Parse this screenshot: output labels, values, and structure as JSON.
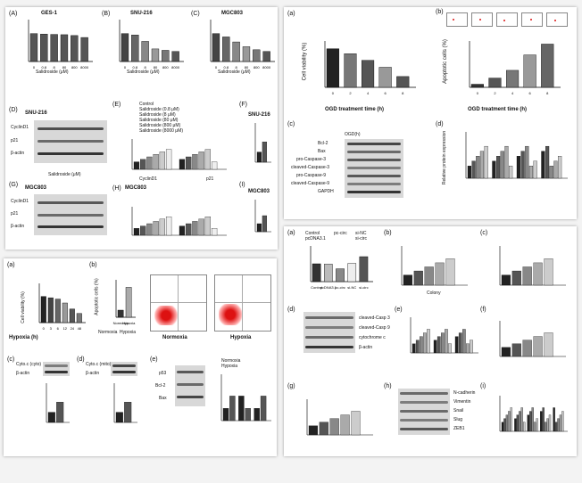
{
  "panelA": {
    "letters": [
      "(A)",
      "(B)",
      "(C)",
      "(D)",
      "(E)",
      "(F)",
      "(G)",
      "(H)",
      "(I)"
    ],
    "chartA_title": "GES-1",
    "chartB_title": "SNU-216",
    "chartC_title": "MGC803",
    "ylabel": "Cell viability (%)",
    "xlabel": "Salidroside (μM)",
    "doses": [
      "0",
      "0.8",
      "8",
      "80",
      "800",
      "8000"
    ],
    "blot1_title": "SNU-216",
    "blot2_title": "MGC803",
    "blot_rows": [
      "CyclinD1",
      "p21",
      "β-actin"
    ],
    "legend": [
      "Control",
      "Salidroside (0.8 μM)",
      "Salidroside (8 μM)",
      "Salidroside (80 μM)",
      "Salidroside (800 μM)",
      "Salidroside (8000 μM)"
    ],
    "rel_signal_label": "Relative signal intensity/control",
    "x_groups": [
      "CyclinD1",
      "p21"
    ],
    "mrna_label": "Relative CyclinD1 mRNA level",
    "mrna_x": [
      "Control",
      "Salidroside"
    ],
    "sig": "***"
  },
  "panelB": {
    "letters": [
      "(a)",
      "(b)",
      "(c)",
      "(d)"
    ],
    "ylabel_a": "Cell viability (%)",
    "ylabel_b": "Apoptotic cells (%)",
    "xlabel": "OGD treatment time (h)",
    "hours": [
      "0",
      "2",
      "4",
      "6",
      "8"
    ],
    "blot_header": "OGD(h)",
    "blot_rows": [
      "Bcl-2",
      "Bax",
      "pro-Caspase-3",
      "cleaved-Caspase-3",
      "pro-Caspase-9",
      "cleaved-Caspase-9",
      "GAPDH"
    ],
    "ylabel_d": "Relative protein expression",
    "d_groups": [
      "Bcl-2",
      "Bax",
      "pro-caspase-3",
      "pro-caspase-9"
    ]
  },
  "panelC": {
    "letters": [
      "(a)",
      "(b)",
      "(c)",
      "(d)",
      "(e)"
    ],
    "ylabel_a": "Cell viability (%)",
    "hypoxia_label": "Hypoxia (h)",
    "hours": [
      "0",
      "3",
      "6",
      "12",
      "24",
      "48"
    ],
    "ylabel_b": "Apoptotic cells (%)",
    "conditions": [
      "Normoxia",
      "Hypoxia"
    ],
    "flow_quads": [
      "Q1",
      "Q2",
      "Q3",
      "Q4"
    ],
    "cyto_cyto": "Cyto.c (cyto)",
    "cyto_mito": "Cyto.c (mito)",
    "beta_actin": "β-actin",
    "ylabel_cyto": "Cyto.c (cyto) (fold change)",
    "ylabel_mito": "Cyto.c (mito) (fold change)",
    "blot_rows_e": [
      "p53",
      "Bcl-2",
      "Bax"
    ],
    "ylabel_e": "Protein level (fold change)",
    "legend_e": [
      "Normoxia",
      "Hypoxia"
    ],
    "x_e": [
      "p53",
      "Bcl-2",
      "Bax"
    ]
  },
  "panelD": {
    "letters": [
      "(a)",
      "(b)",
      "(c)",
      "(d)",
      "(e)",
      "(f)",
      "(g)",
      "(h)",
      "(i)"
    ],
    "legend": [
      "Control",
      "pcDNA3.1",
      "pc-circ",
      "si-NC",
      "si-circ"
    ],
    "ylabel_a": "Cell viability (%)",
    "ylabel_b": "Survival fractions (%)",
    "xlabel_b": "Colony",
    "ylabel_c": "Apoptotic cells (%)",
    "blot_rows_d": [
      "cleaved-Casp 3",
      "cleaved-Casp 9",
      "cytochrome c",
      "β-actin"
    ],
    "ylabel_f": "Relative migration (%)",
    "ylabel_g": "Relative invasion (%)",
    "blot_rows_h": [
      "N-cadherin",
      "Vimentin",
      "Snail",
      "Slug",
      "ZEB1"
    ],
    "ylabel_i": "Relative protein expression",
    "x_i": [
      "N-cadherin",
      "Vimentin",
      "Snail",
      "Slug",
      "ZEB1"
    ]
  },
  "chart_data": [
    {
      "type": "bar",
      "title": "GES-1",
      "categories": [
        "0",
        "0.8",
        "8",
        "80",
        "800",
        "8000"
      ],
      "values": [
        100,
        98,
        97,
        96,
        93,
        86
      ],
      "ylabel": "Cell viability (%)",
      "xlabel": "Salidroside (μM)",
      "ylim": [
        0,
        150
      ]
    },
    {
      "type": "bar",
      "title": "SNU-216",
      "categories": [
        "0",
        "0.8",
        "8",
        "80",
        "800",
        "8000"
      ],
      "values": [
        100,
        95,
        72,
        45,
        40,
        36
      ],
      "ylabel": "Cell viability (%)",
      "xlabel": "Salidroside (μM)",
      "ylim": [
        0,
        150
      ]
    },
    {
      "type": "bar",
      "title": "MGC803",
      "categories": [
        "0",
        "0.8",
        "8",
        "80",
        "800",
        "8000"
      ],
      "values": [
        100,
        88,
        70,
        53,
        42,
        36
      ],
      "ylabel": "Cell viability (%)",
      "xlabel": "Salidroside (μM)",
      "ylim": [
        0,
        150
      ]
    },
    {
      "type": "bar",
      "title": "",
      "categories": [
        "0",
        "2",
        "4",
        "6",
        "8"
      ],
      "values": [
        100,
        87,
        70,
        52,
        28
      ],
      "ylabel": "Cell viability (%)",
      "xlabel": "OGD treatment time (h)",
      "ylim": [
        0,
        120
      ]
    },
    {
      "type": "bar",
      "title": "",
      "categories": [
        "0",
        "2",
        "4",
        "6",
        "8"
      ],
      "values": [
        2,
        6,
        11,
        21,
        28
      ],
      "ylabel": "Apoptotic cells (%)",
      "xlabel": "OGD treatment time (h)",
      "ylim": [
        0,
        30
      ]
    },
    {
      "type": "bar",
      "title": "",
      "categories": [
        "0",
        "3",
        "6",
        "12",
        "24",
        "48"
      ],
      "values": [
        100,
        95,
        90,
        75,
        52,
        35
      ],
      "ylabel": "Cell viability (%)",
      "xlabel": "Hypoxia (h)",
      "ylim": [
        0,
        150
      ]
    },
    {
      "type": "bar",
      "title": "",
      "categories": [
        "Normoxia",
        "Hypoxia"
      ],
      "values": [
        3.8,
        16
      ],
      "ylabel": "Apoptotic cells (%)",
      "ylim": [
        0,
        20
      ]
    },
    {
      "type": "bar",
      "title": "",
      "categories": [
        "Control",
        "pcDNA3.1",
        "pc-circ",
        "si-NC",
        "si-circ"
      ],
      "values": [
        100,
        98,
        72,
        102,
        140
      ],
      "ylabel": "Cell viability (%)",
      "ylim": [
        0,
        200
      ]
    }
  ]
}
